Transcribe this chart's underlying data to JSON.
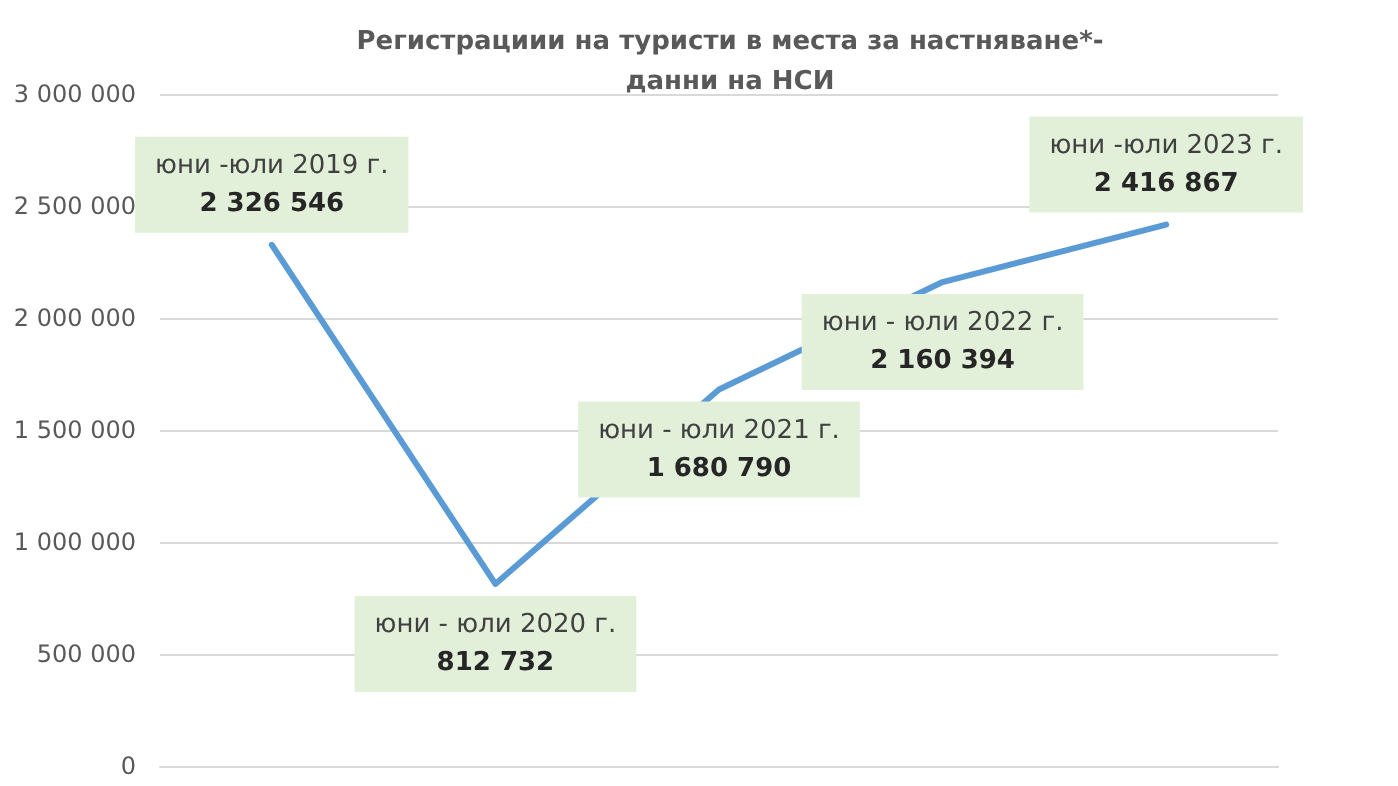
{
  "chart_data": {
    "type": "line",
    "title": "Регистрациии на туристи в места за настняване*-\nданни на НСИ",
    "categories": [
      "юни -юли 2019 г.",
      "юни - юли 2020 г.",
      "юни - юли 2021 г.",
      "юни - юли 2022 г.",
      "юни -юли 2023 г."
    ],
    "series": [
      {
        "color": "#5b9bd5",
        "values": [
          2326546,
          812732,
          1680790,
          2160394,
          2416867
        ],
        "value_labels": [
          "2 326 546",
          "812 732",
          "1 680 790",
          "2 160 394",
          "2 416 867"
        ]
      }
    ],
    "ylim": [
      0,
      3000000
    ],
    "yticks": [
      {
        "value": 0,
        "label": "0"
      },
      {
        "value": 500000,
        "label": "500 000"
      },
      {
        "value": 1000000,
        "label": "1 000 000"
      },
      {
        "value": 1500000,
        "label": "1 500 000"
      },
      {
        "value": 2000000,
        "label": "2 000 000"
      },
      {
        "value": 2500000,
        "label": "2 500 000"
      },
      {
        "value": 3000000,
        "label": "3 000 000"
      }
    ],
    "tick_labels": "y",
    "grid": "y",
    "marker": "none",
    "line_style": "solid"
  }
}
